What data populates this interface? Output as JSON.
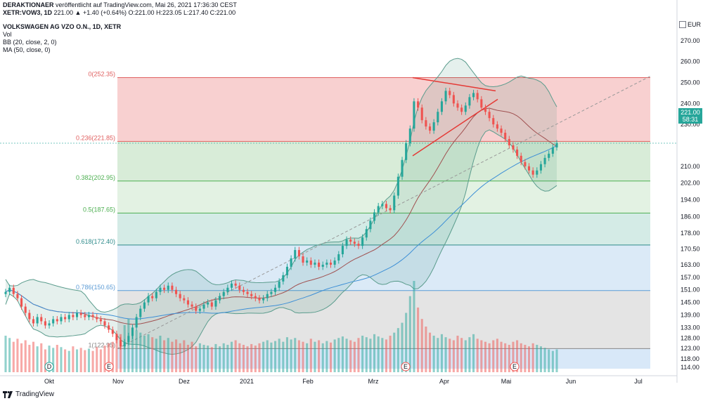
{
  "header": {
    "line1_author": "DERAKTIONAER",
    "line1_rest": " veröffentlicht auf TradingView.com, Mai 26, 2021 17:36:30 CEST",
    "line2_symbol": "XETR:VOW3, 1D",
    "line2_values": " 221.00 ▲ +1.40 (+0.64%) O:221.00 H:223.05 L:217.40 C:221.00",
    "instrument": "VOLKSWAGEN AG VZO O.N., 1D, XETR",
    "ind_vol": "Vol",
    "ind_bb": "BB (20, close, 2, 0)",
    "ind_ma": "MA (50, close, 0)"
  },
  "price_axis": {
    "currency": "EUR",
    "current_price": "221.00",
    "countdown": "58:31"
  },
  "footer": {
    "brand": "TradingView"
  },
  "colors": {
    "up": "#26a69a",
    "down": "#ef5350",
    "bb": "#5b9c8d",
    "ma": "#3d8fd6",
    "basis": "#a05050"
  },
  "chart_data": {
    "type": "candlestick",
    "title": "VOLKSWAGEN AG VZO O.N., 1D, XETR",
    "ylim": [
      110,
      280
    ],
    "y_ticks": [
      "270.00",
      "260.00",
      "250.00",
      "240.00",
      "230.00",
      "221.00",
      "210.00",
      "202.00",
      "194.00",
      "186.00",
      "178.00",
      "170.50",
      "163.00",
      "157.00",
      "151.00",
      "145.00",
      "139.00",
      "133.00",
      "128.00",
      "123.00",
      "118.00",
      "114.00"
    ],
    "x_ticks": [
      "Okt",
      "Nov",
      "Dez",
      "2021",
      "Feb",
      "Mrz",
      "Apr",
      "Mai",
      "Jun",
      "Jul"
    ],
    "fibonacci": [
      {
        "label": "0(252.35)",
        "value": 252.35
      },
      {
        "label": "0.236(221.85)",
        "value": 221.85
      },
      {
        "label": "0.382(202.95)",
        "value": 202.95
      },
      {
        "label": "0.5(187.65)",
        "value": 187.65
      },
      {
        "label": "0.618(172.40)",
        "value": 172.4
      },
      {
        "label": "0.786(150.65)",
        "value": 150.65
      },
      {
        "label": "1(122.95)",
        "value": 122.95
      }
    ],
    "event_markers": [
      {
        "label": "D",
        "month": "Okt"
      },
      {
        "label": "E",
        "month": "Nov"
      },
      {
        "label": "E",
        "month": "Mrz"
      },
      {
        "label": "E",
        "month": "Mai"
      }
    ],
    "closes": [
      150,
      152,
      149,
      147,
      143,
      140,
      137,
      135,
      138,
      136,
      134,
      135,
      137,
      136,
      138,
      137,
      139,
      138,
      140,
      139,
      138,
      139,
      138,
      137,
      136,
      134,
      132,
      130,
      127,
      124,
      126,
      129,
      133,
      138,
      142,
      145,
      148,
      147,
      150,
      152,
      151,
      153,
      151,
      149,
      147,
      146,
      144,
      143,
      141,
      142,
      144,
      145,
      143,
      146,
      148,
      150,
      152,
      154,
      153,
      151,
      150,
      149,
      148,
      147,
      146,
      147,
      149,
      150,
      152,
      155,
      158,
      162,
      166,
      170,
      167,
      164,
      165,
      163,
      164,
      162,
      163,
      164,
      163,
      165,
      168,
      172,
      175,
      174,
      173,
      172,
      176,
      180,
      184,
      188,
      191,
      192,
      190,
      189,
      196,
      205,
      213,
      221,
      228,
      241,
      238,
      232,
      229,
      227,
      231,
      236,
      241,
      246,
      244,
      240,
      238,
      236,
      239,
      243,
      245,
      242,
      238,
      236,
      233,
      230,
      228,
      226,
      223,
      220,
      218,
      215,
      212,
      210,
      208,
      206,
      208,
      211,
      214,
      216,
      219,
      221
    ],
    "volumes": [
      48,
      45,
      40,
      44,
      38,
      42,
      36,
      40,
      34,
      38,
      30,
      35,
      32,
      36,
      33,
      30,
      28,
      34,
      30,
      32,
      29,
      31,
      28,
      33,
      30,
      35,
      38,
      40,
      45,
      50,
      62,
      70,
      58,
      55,
      52,
      48,
      50,
      46,
      44,
      48,
      42,
      45,
      40,
      43,
      38,
      42,
      36,
      40,
      34,
      38,
      36,
      35,
      33,
      37,
      34,
      38,
      36,
      40,
      42,
      38,
      36,
      34,
      37,
      35,
      38,
      40,
      42,
      39,
      41,
      44,
      40,
      46,
      43,
      45,
      42,
      40,
      38,
      44,
      40,
      42,
      38,
      41,
      39,
      43,
      45,
      47,
      44,
      42,
      40,
      45,
      48,
      46,
      44,
      50,
      47,
      45,
      43,
      48,
      52,
      58,
      65,
      78,
      100,
      120,
      85,
      70,
      60,
      52,
      48,
      45,
      50,
      46,
      44,
      42,
      48,
      45,
      42,
      46,
      50,
      44,
      42,
      40,
      38,
      42,
      44,
      40,
      38,
      36,
      40,
      42,
      38,
      36,
      34,
      38,
      36,
      34,
      32,
      30,
      28,
      30
    ]
  }
}
